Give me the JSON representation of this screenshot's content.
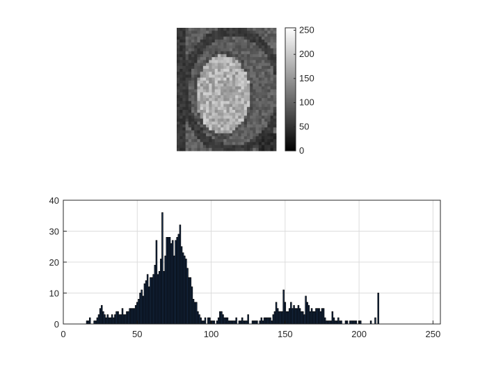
{
  "image_panel": {
    "description_colors": {
      "tissue_dark": "#2a2a2a",
      "tissue_mid": "#6e6e6e",
      "kidney": "#cfcfcf"
    },
    "colorbar": {
      "ticks": [
        "250",
        "200",
        "150",
        "100",
        "50",
        "0"
      ],
      "range": [
        0,
        255
      ]
    }
  },
  "chart_data": {
    "type": "bar",
    "title": "",
    "xlabel": "",
    "ylabel": "",
    "xlim": [
      0,
      255
    ],
    "ylim": [
      0,
      40
    ],
    "xticks": [
      "0",
      "50",
      "100",
      "150",
      "200",
      "250"
    ],
    "yticks": [
      "0",
      "10",
      "20",
      "30",
      "40"
    ],
    "grid": true,
    "bar_color": "#1f3a5f",
    "edge_color": "#000000",
    "x_start": 16,
    "values": [
      1,
      1,
      2,
      0,
      0,
      1,
      1,
      2,
      3,
      5,
      6,
      4,
      3,
      2,
      3,
      2,
      2,
      3,
      2,
      3,
      4,
      4,
      3,
      3,
      5,
      3,
      3,
      4,
      4,
      5,
      5,
      5,
      5,
      6,
      7,
      8,
      10,
      11,
      9,
      13,
      14,
      16,
      12,
      15,
      15,
      16,
      19,
      27,
      16,
      17,
      21,
      36,
      17,
      22,
      28,
      28,
      28,
      26,
      27,
      22,
      27,
      28,
      29,
      32,
      25,
      23,
      22,
      21,
      18,
      15,
      15,
      12,
      8,
      7,
      7,
      4,
      3,
      2,
      1,
      1,
      2,
      0,
      2,
      2,
      1,
      1,
      1,
      0,
      1,
      2,
      4,
      4,
      3,
      2,
      2,
      2,
      1,
      1,
      1,
      1,
      1,
      2,
      0,
      1,
      1,
      2,
      1,
      1,
      1,
      3,
      0,
      0,
      1,
      1,
      1,
      1,
      0,
      1,
      2,
      1,
      2,
      2,
      2,
      2,
      2,
      1,
      3,
      4,
      7,
      5,
      4,
      4,
      4,
      11,
      7,
      4,
      4,
      5,
      7,
      5,
      6,
      5,
      5,
      6,
      5,
      4,
      4,
      3,
      9,
      7,
      6,
      4,
      5,
      4,
      4,
      5,
      5,
      5,
      4,
      5,
      5,
      2,
      1,
      1,
      1,
      1,
      4,
      2,
      1,
      1,
      2,
      1,
      1,
      0,
      0,
      1,
      1,
      0,
      1,
      1,
      1,
      1,
      1,
      0,
      1,
      1,
      0,
      0,
      0,
      0,
      0,
      0,
      1,
      0,
      0,
      2,
      0,
      10
    ]
  }
}
